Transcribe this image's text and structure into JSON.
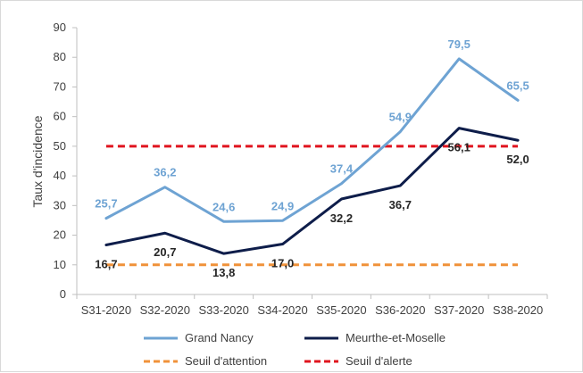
{
  "chart_data": {
    "type": "line",
    "title": "",
    "xlabel": "",
    "ylabel": "Taux d'incidence",
    "ylim": [
      0,
      90
    ],
    "yticks": [
      "0",
      "10",
      "20",
      "30",
      "40",
      "50",
      "60",
      "70",
      "80",
      "90"
    ],
    "categories": [
      "S31-2020",
      "S32-2020",
      "S33-2020",
      "S34-2020",
      "S35-2020",
      "S36-2020",
      "S37-2020",
      "S38-2020"
    ],
    "grid": false,
    "legend_position": "bottom",
    "series": [
      {
        "name": "Grand Nancy",
        "color": "#6ea3d3",
        "values": [
          25.7,
          36.2,
          24.6,
          24.9,
          37.4,
          54.9,
          79.5,
          65.5
        ],
        "labels": [
          "25,7",
          "36,2",
          "24,6",
          "24,9",
          "37,4",
          "54,9",
          "79,5",
          "65,5"
        ]
      },
      {
        "name": "Meurthe-et-Moselle",
        "color": "#0e1d4a",
        "values": [
          16.7,
          20.7,
          13.8,
          17.0,
          32.2,
          36.7,
          56.1,
          52.0
        ],
        "labels": [
          "16,7",
          "20,7",
          "13,8",
          "17,0",
          "32,2",
          "36,7",
          "56,1",
          "52,0"
        ]
      }
    ],
    "thresholds": [
      {
        "name": "Seuil d'attention",
        "value": 10,
        "color": "#f0923a",
        "style": "dashed"
      },
      {
        "name": "Seuil d'alerte",
        "value": 50,
        "color": "#e0141e",
        "style": "dashed"
      }
    ]
  }
}
